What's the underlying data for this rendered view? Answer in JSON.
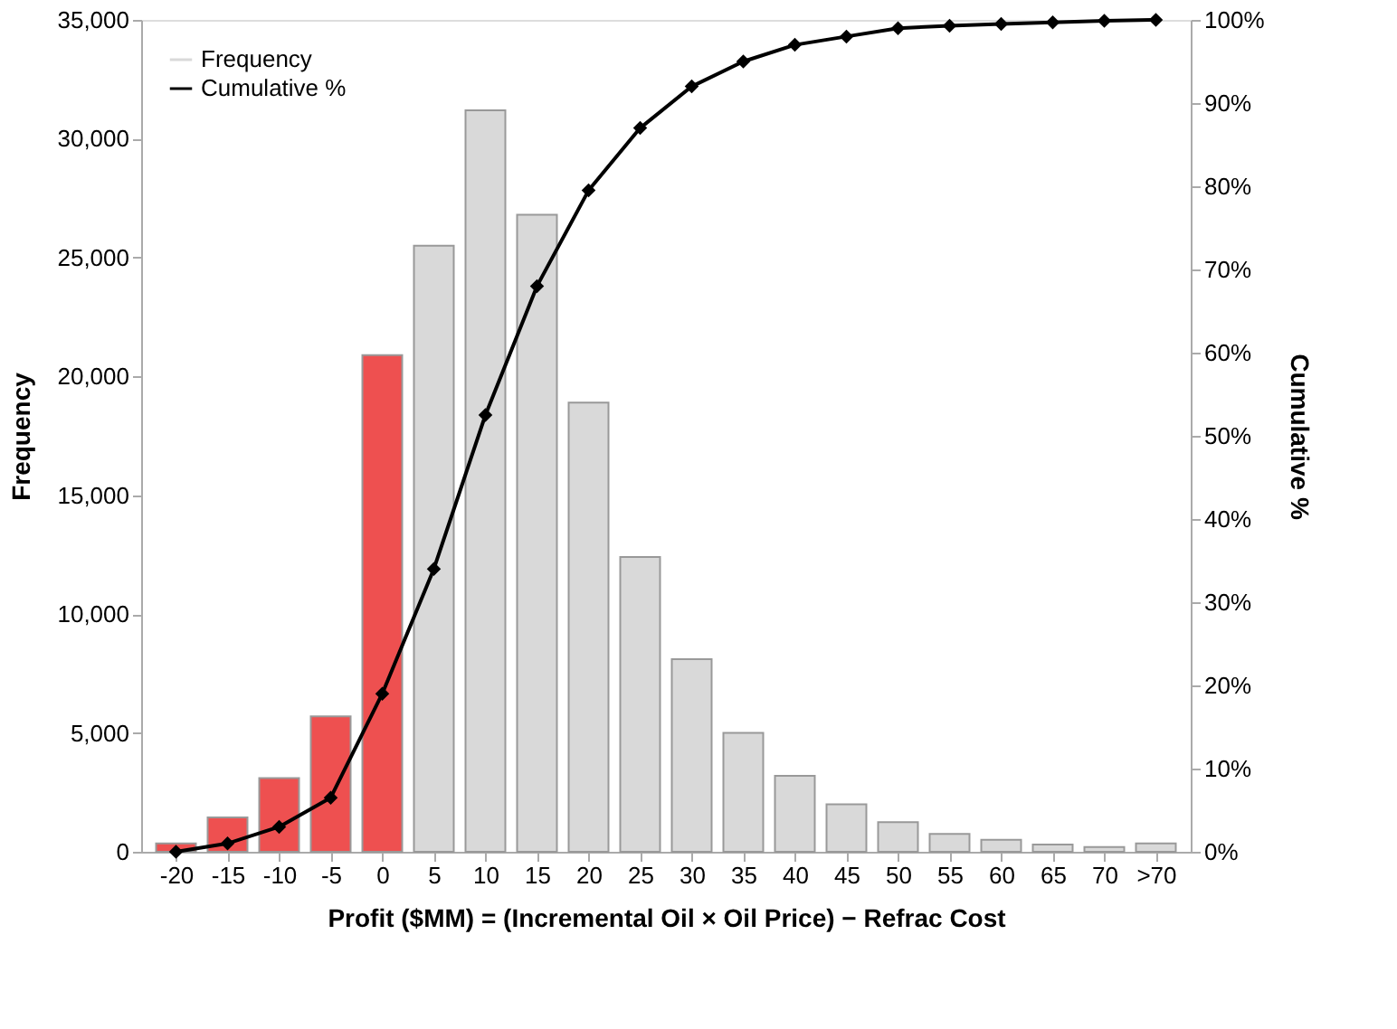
{
  "chart_data": {
    "type": "bar",
    "xlabel": "Profit ($MM) = (Incremental Oil × Oil Price) − Refrac Cost",
    "ylabel": "Frequency",
    "y2label": "Cumulative %",
    "categories": [
      "-20",
      "-15",
      "-10",
      "-5",
      "0",
      "5",
      "10",
      "15",
      "20",
      "25",
      "30",
      "35",
      "40",
      "45",
      "50",
      "55",
      "60",
      "65",
      "70",
      ">70"
    ],
    "series": [
      {
        "name": "Frequency",
        "color": "#d9d9d9",
        "colors": [
          "#ee5050",
          "#ee5050",
          "#ee5050",
          "#ee5050",
          "#ee5050",
          "#d9d9d9",
          "#d9d9d9",
          "#d9d9d9",
          "#d9d9d9",
          "#d9d9d9",
          "#d9d9d9",
          "#d9d9d9",
          "#d9d9d9",
          "#d9d9d9",
          "#d9d9d9",
          "#d9d9d9",
          "#d9d9d9",
          "#d9d9d9",
          "#d9d9d9",
          "#d9d9d9"
        ],
        "values": [
          350,
          1450,
          3100,
          5700,
          20900,
          25500,
          31200,
          26800,
          18900,
          12400,
          8100,
          5000,
          3200,
          2000,
          1250,
          750,
          500,
          300,
          200,
          350
        ]
      },
      {
        "name": "Cumulative %",
        "type": "line",
        "axis": "y2",
        "color": "#000000",
        "marker": "diamond",
        "values": [
          0,
          1,
          3,
          6.5,
          19,
          34,
          52.5,
          68,
          79.5,
          87,
          92,
          95,
          97,
          98,
          99,
          99.3,
          99.5,
          99.7,
          99.9,
          100
        ]
      }
    ],
    "ylim": [
      0,
      35000
    ],
    "yticks": [
      {
        "value": 0,
        "label": "0"
      },
      {
        "value": 5000,
        "label": "5,000"
      },
      {
        "value": 10000,
        "label": "10,000"
      },
      {
        "value": 15000,
        "label": "15,000"
      },
      {
        "value": 20000,
        "label": "20,000"
      },
      {
        "value": 25000,
        "label": "25,000"
      },
      {
        "value": 30000,
        "label": "30,000"
      },
      {
        "value": 35000,
        "label": "35,000"
      }
    ],
    "y2lim": [
      0,
      100
    ],
    "y2ticks": [
      {
        "value": 0,
        "label": "0%"
      },
      {
        "value": 10,
        "label": "10%"
      },
      {
        "value": 20,
        "label": "20%"
      },
      {
        "value": 30,
        "label": "30%"
      },
      {
        "value": 40,
        "label": "40%"
      },
      {
        "value": 50,
        "label": "50%"
      },
      {
        "value": 60,
        "label": "60%"
      },
      {
        "value": 70,
        "label": "70%"
      },
      {
        "value": 80,
        "label": "80%"
      },
      {
        "value": 90,
        "label": "90%"
      },
      {
        "value": 100,
        "label": "100%"
      }
    ],
    "grid": false,
    "legend": "top left"
  }
}
